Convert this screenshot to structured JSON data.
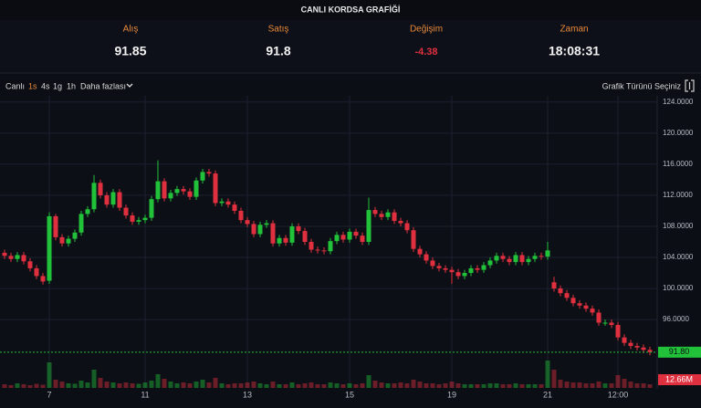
{
  "header": {
    "title": "CANLI KORDSA GRAFİĞİ",
    "columns": [
      {
        "label": "Alış",
        "value": "91.85"
      },
      {
        "label": "Satış",
        "value": "91.8"
      },
      {
        "label": "Değişim",
        "value": "-4.38"
      },
      {
        "label": "Zaman",
        "value": "18:08:31"
      }
    ]
  },
  "toolbar": {
    "items": [
      "Canlı",
      "1s",
      "4s",
      "1g",
      "1h",
      "Daha fazlası"
    ],
    "chart_type": "Grafik Türünü Seçiniz"
  },
  "chart_data": {
    "type": "candlestick",
    "categories": [
      null,
      null,
      null,
      null,
      null,
      null,
      null,
      "7",
      null,
      null,
      null,
      null,
      null,
      null,
      null,
      null,
      null,
      null,
      null,
      null,
      null,
      null,
      "11",
      null,
      null,
      null,
      null,
      null,
      null,
      null,
      null,
      null,
      null,
      null,
      null,
      null,
      null,
      null,
      "13",
      null,
      null,
      null,
      null,
      null,
      null,
      null,
      null,
      null,
      null,
      null,
      null,
      null,
      null,
      null,
      "15",
      null,
      null,
      null,
      null,
      null,
      null,
      null,
      null,
      null,
      null,
      null,
      null,
      null,
      null,
      null,
      "19",
      null,
      null,
      null,
      null,
      null,
      null,
      null,
      null,
      null,
      null,
      null,
      null,
      null,
      null,
      "21",
      null,
      null,
      null,
      null,
      null,
      null,
      null,
      null,
      null,
      null,
      "12:00",
      null,
      null,
      null,
      null,
      null
    ],
    "open": [
      104.6,
      104.2,
      103.8,
      104.3,
      103.5,
      102.6,
      101.6,
      101.0,
      109.3,
      106.6,
      105.8,
      106.4,
      107.2,
      109.6,
      110.2,
      113.6,
      112.0,
      110.8,
      112.4,
      110.4,
      109.4,
      108.6,
      108.8,
      109.1,
      111.5,
      113.8,
      111.6,
      112.3,
      112.8,
      112.5,
      111.8,
      113.9,
      115.0,
      114.8,
      111.0,
      111.2,
      110.8,
      110.0,
      108.8,
      108.3,
      107.0,
      108.2,
      108.4,
      105.8,
      106.5,
      105.9,
      108.0,
      107.4,
      106.0,
      105.0,
      104.9,
      104.8,
      106.1,
      106.9,
      106.3,
      107.3,
      106.8,
      106.0,
      110.1,
      109.6,
      109.2,
      109.8,
      108.7,
      108.4,
      107.5,
      105.1,
      104.4,
      103.6,
      102.9,
      102.6,
      102.4,
      102.1,
      101.6,
      102.0,
      102.6,
      102.4,
      103.0,
      103.6,
      104.2,
      103.8,
      103.4,
      104.3,
      103.4,
      103.8,
      104.2,
      104.1,
      100.8,
      100.0,
      99.4,
      98.8,
      98.1,
      97.8,
      97.4,
      96.9,
      95.6,
      95.6,
      95.3,
      93.7,
      93.0,
      92.6,
      92.4,
      92.1
    ],
    "high": [
      105.0,
      104.6,
      104.7,
      104.7,
      103.9,
      103.0,
      102.0,
      109.8,
      109.6,
      107.0,
      106.8,
      107.6,
      110.0,
      110.6,
      114.6,
      114.0,
      112.4,
      112.8,
      112.8,
      110.8,
      109.8,
      109.2,
      109.5,
      111.9,
      116.5,
      114.2,
      112.7,
      113.2,
      113.2,
      112.9,
      114.3,
      115.4,
      115.4,
      115.2,
      111.6,
      111.6,
      111.2,
      110.4,
      109.2,
      108.7,
      108.6,
      108.8,
      108.8,
      106.9,
      106.9,
      108.4,
      108.4,
      107.8,
      106.4,
      105.4,
      105.3,
      106.5,
      107.3,
      107.3,
      107.7,
      107.7,
      107.2,
      111.7,
      110.5,
      110.0,
      110.2,
      110.2,
      109.1,
      108.8,
      107.9,
      105.5,
      104.8,
      104.0,
      103.3,
      103.0,
      102.8,
      102.5,
      102.4,
      103.0,
      103.0,
      103.4,
      104.0,
      104.6,
      104.6,
      104.2,
      104.7,
      104.7,
      104.2,
      104.6,
      104.6,
      106.0,
      101.5,
      100.4,
      99.8,
      99.2,
      98.5,
      98.2,
      97.8,
      97.3,
      96.0,
      96.0,
      95.7,
      94.1,
      93.4,
      93.0,
      92.8,
      92.5
    ],
    "low": [
      103.8,
      103.4,
      103.4,
      103.1,
      102.2,
      101.2,
      100.5,
      100.6,
      106.2,
      105.4,
      105.4,
      106.0,
      106.8,
      109.2,
      109.8,
      111.6,
      110.4,
      110.4,
      110.0,
      109.0,
      108.2,
      108.2,
      108.4,
      108.7,
      111.1,
      111.2,
      111.2,
      111.9,
      112.1,
      111.4,
      111.4,
      113.5,
      114.4,
      110.6,
      110.6,
      110.4,
      109.6,
      108.4,
      107.9,
      106.6,
      106.6,
      107.8,
      105.4,
      105.4,
      105.5,
      105.5,
      107.0,
      105.6,
      104.6,
      104.5,
      104.4,
      104.4,
      105.7,
      105.9,
      105.9,
      106.4,
      105.6,
      105.6,
      109.2,
      108.8,
      108.8,
      108.3,
      108.0,
      107.1,
      104.7,
      104.0,
      103.2,
      102.5,
      102.2,
      102.0,
      100.6,
      101.2,
      101.2,
      101.6,
      102.0,
      102.0,
      102.6,
      103.2,
      103.4,
      103.0,
      103.0,
      103.0,
      103.0,
      103.4,
      103.7,
      103.7,
      99.6,
      99.0,
      98.4,
      97.7,
      97.4,
      97.0,
      96.5,
      95.2,
      95.2,
      94.9,
      93.3,
      92.6,
      92.2,
      92.0,
      91.7,
      91.4
    ],
    "close": [
      104.2,
      103.8,
      104.3,
      103.5,
      102.6,
      101.6,
      100.9,
      109.3,
      106.6,
      105.8,
      106.4,
      107.2,
      109.6,
      110.2,
      113.6,
      112.0,
      110.8,
      112.4,
      110.4,
      109.4,
      108.6,
      108.8,
      109.1,
      111.5,
      113.8,
      111.6,
      112.3,
      112.8,
      112.5,
      111.8,
      113.9,
      115.0,
      114.8,
      111.0,
      111.2,
      110.8,
      110.0,
      108.8,
      108.3,
      107.0,
      108.2,
      108.4,
      105.8,
      106.5,
      105.9,
      108.0,
      107.4,
      106.0,
      105.0,
      104.9,
      104.8,
      106.1,
      106.9,
      106.3,
      107.3,
      106.8,
      106.0,
      110.1,
      109.6,
      109.2,
      109.8,
      108.7,
      108.4,
      107.5,
      105.1,
      104.4,
      103.6,
      102.9,
      102.6,
      102.4,
      102.1,
      101.6,
      102.0,
      102.6,
      102.4,
      103.0,
      103.6,
      104.2,
      103.8,
      103.4,
      104.3,
      103.4,
      103.8,
      104.2,
      104.1,
      104.9,
      100.0,
      99.4,
      98.8,
      98.1,
      97.8,
      97.4,
      96.9,
      95.6,
      95.6,
      95.3,
      93.7,
      93.0,
      92.6,
      92.4,
      92.1,
      91.8
    ],
    "volume": [
      8,
      6,
      10,
      8,
      6,
      9,
      7,
      56,
      18,
      14,
      10,
      9,
      16,
      12,
      40,
      22,
      14,
      12,
      10,
      12,
      10,
      9,
      12,
      16,
      30,
      20,
      14,
      10,
      12,
      10,
      14,
      18,
      12,
      22,
      10,
      8,
      10,
      10,
      12,
      14,
      10,
      8,
      14,
      8,
      8,
      12,
      8,
      10,
      12,
      8,
      8,
      12,
      10,
      8,
      10,
      8,
      10,
      28,
      16,
      12,
      10,
      10,
      12,
      10,
      18,
      14,
      10,
      10,
      8,
      10,
      14,
      10,
      8,
      8,
      8,
      8,
      10,
      10,
      8,
      8,
      10,
      8,
      8,
      8,
      8,
      60,
      40,
      18,
      14,
      12,
      12,
      10,
      10,
      14,
      10,
      10,
      28,
      20,
      14,
      10,
      10,
      8
    ],
    "volume_lim": [
      0,
      70
    ],
    "volume_label": {
      "value": 12.66,
      "label": "12.66M"
    },
    "last_price": {
      "value": 91.8,
      "label": "91.80"
    },
    "ylim": [
      87.2,
      124.8
    ],
    "yticks": [
      {
        "value": 96,
        "label": "96.0000"
      },
      {
        "value": 100,
        "label": "100.0000"
      },
      {
        "value": 104,
        "label": "104.0000"
      },
      {
        "value": 108,
        "label": "108.0000"
      },
      {
        "value": 112,
        "label": "112.0000"
      },
      {
        "value": 116,
        "label": "116.0000"
      },
      {
        "value": 120,
        "label": "120.0000"
      },
      {
        "value": 124,
        "label": "124.0000"
      }
    ],
    "up_color": "#22c13a",
    "down_color": "#e0303f",
    "grid": true
  }
}
